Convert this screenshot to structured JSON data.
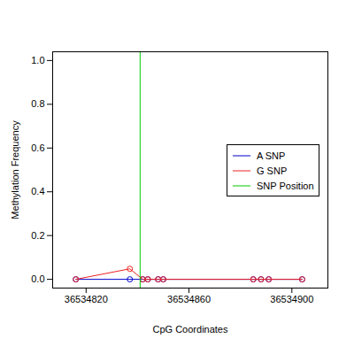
{
  "chart_data": {
    "type": "line",
    "x_label": "CpG Coordinates",
    "y_label": "Methylation Frequency",
    "x": [
      36534816,
      36534837,
      36534842,
      36534844,
      36534848,
      36534850,
      36534885,
      36534888,
      36534891,
      36534904
    ],
    "series": [
      {
        "name": "A SNP",
        "color": "#0000cd",
        "marker": "circle",
        "line_style": "solid",
        "values": [
          0,
          0,
          0,
          0,
          0,
          0,
          0,
          0,
          0,
          0
        ]
      },
      {
        "name": "G SNP",
        "color": "#ee2222",
        "marker": "circle",
        "line_style": "solid",
        "values": [
          0,
          0.048,
          0,
          0,
          0,
          0,
          0,
          0,
          0,
          0
        ]
      }
    ],
    "snp_position": {
      "name": "SNP Position",
      "x": 36534841,
      "color": "#00cc00"
    },
    "xlim": [
      36534807,
      36534914
    ],
    "xticks": [
      36534820,
      36534860,
      36534900
    ],
    "ylim": [
      -0.04,
      1.04
    ],
    "yticks": [
      {
        "value": 0,
        "label": "0.0"
      },
      0.2,
      0.4,
      0.6,
      0.8,
      {
        "value": 1,
        "label": "1.0"
      }
    ],
    "grid": false,
    "legend": "right"
  }
}
